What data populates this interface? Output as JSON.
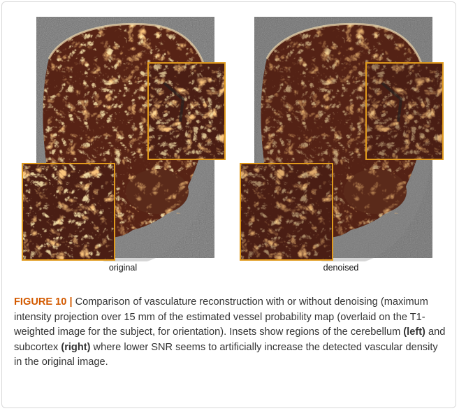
{
  "figure": {
    "panels": [
      {
        "id": "original",
        "label": "original",
        "content": "Coronal MIP of vessel probability map overlaid on T1 with cerebellum and subcortex insets"
      },
      {
        "id": "denoised",
        "label": "denoised",
        "content": "Coronal MIP of vessel probability map overlaid on T1 with cerebellum and subcortex insets"
      }
    ],
    "inset_border_color": "#e09a1c",
    "overlay_color": "#e2863a"
  },
  "caption": {
    "label": "FIGURE 10 |",
    "text_1": " Comparison of vasculature reconstruction with or without denoising (maximum intensity projection over 15 mm of the estimated vessel probability map (overlaid on the T1-weighted image for the subject, for orientation). Insets show regions of the cerebellum ",
    "left": "(left)",
    "text_2": " and subcortex ",
    "right": "(right)",
    "text_3": " where lower SNR seems to artificially increase the detected vascular density in the original image."
  }
}
